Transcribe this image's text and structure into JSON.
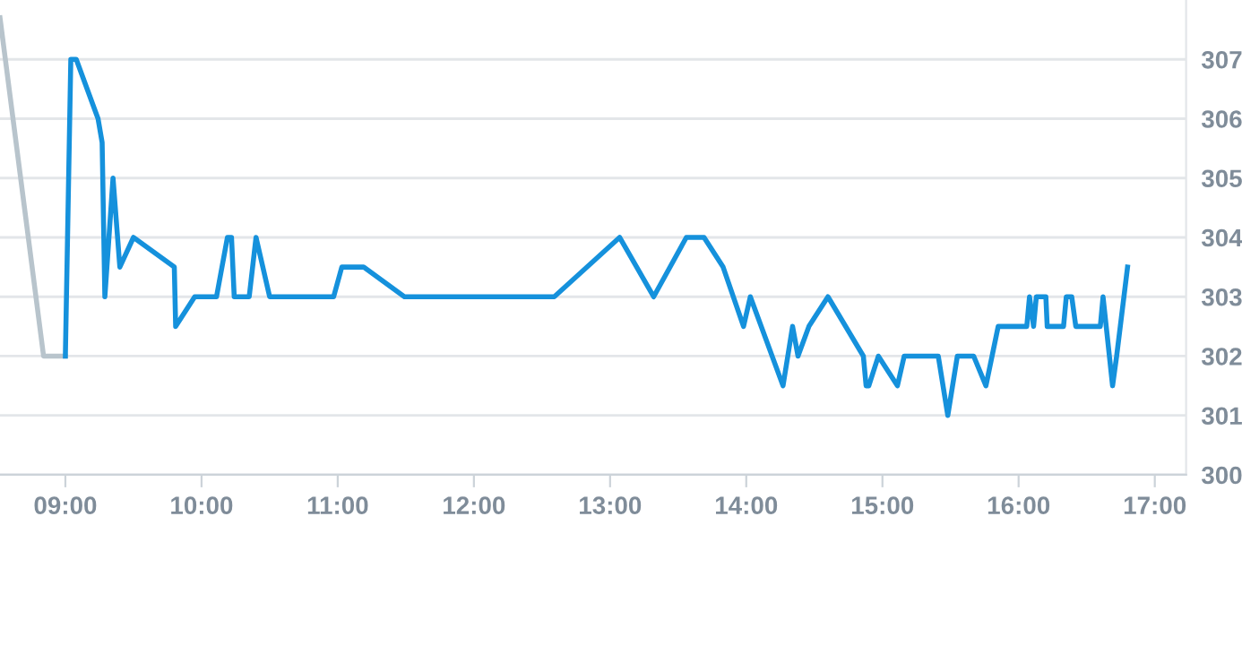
{
  "chart_data": {
    "type": "line",
    "xlim": [
      8.52,
      17.23
    ],
    "ylim": [
      300,
      308
    ],
    "xticks": [
      {
        "value": 9,
        "label": "09:00"
      },
      {
        "value": 10,
        "label": "10:00"
      },
      {
        "value": 11,
        "label": "11:00"
      },
      {
        "value": 12,
        "label": "12:00"
      },
      {
        "value": 13,
        "label": "13:00"
      },
      {
        "value": 14,
        "label": "14:00"
      },
      {
        "value": 15,
        "label": "15:00"
      },
      {
        "value": 16,
        "label": "16:00"
      },
      {
        "value": 17,
        "label": "17:00"
      }
    ],
    "yticks": [
      300,
      301,
      302,
      303,
      304,
      305,
      306,
      307
    ],
    "grid": "y",
    "marker": "none",
    "line_style": "solid",
    "series": [
      {
        "color": "#b8c4cc",
        "x": [
          8.52,
          8.84,
          9.0
        ],
        "values": [
          307.7,
          302,
          302
        ]
      },
      {
        "color": "#1591dc",
        "x": [
          9.0,
          9.04,
          9.08,
          9.24,
          9.27,
          9.29,
          9.35,
          9.4,
          9.5,
          9.8,
          9.81,
          9.95,
          10.11,
          10.19,
          10.22,
          10.24,
          10.35,
          10.4,
          10.5,
          10.97,
          11.03,
          11.19,
          11.49,
          12.59,
          13.07,
          13.32,
          13.56,
          13.69,
          13.83,
          13.98,
          14.03,
          14.27,
          14.34,
          14.38,
          14.46,
          14.6,
          14.86,
          14.88,
          14.9,
          14.97,
          15.11,
          15.16,
          15.41,
          15.48,
          15.55,
          15.67,
          15.76,
          15.85,
          16.06,
          16.08,
          16.11,
          16.13,
          16.2,
          16.21,
          16.33,
          16.35,
          16.39,
          16.42,
          16.6,
          16.62,
          16.69,
          16.72,
          16.8
        ],
        "values": [
          302,
          307,
          307,
          306,
          305.6,
          303,
          305,
          303.5,
          304,
          303.5,
          302.5,
          303,
          303,
          304,
          304,
          303,
          303,
          304,
          303,
          303,
          303.5,
          303.5,
          303,
          303,
          304,
          303,
          304,
          304,
          303.5,
          302.5,
          303,
          301.5,
          302.5,
          302,
          302.5,
          303,
          302,
          301.5,
          301.5,
          302,
          301.5,
          302,
          302,
          301,
          302,
          302,
          301.5,
          302.5,
          302.5,
          303,
          302.5,
          303,
          303,
          302.5,
          302.5,
          303,
          303,
          302.5,
          302.5,
          303,
          301.5,
          302,
          303.5
        ]
      }
    ]
  }
}
